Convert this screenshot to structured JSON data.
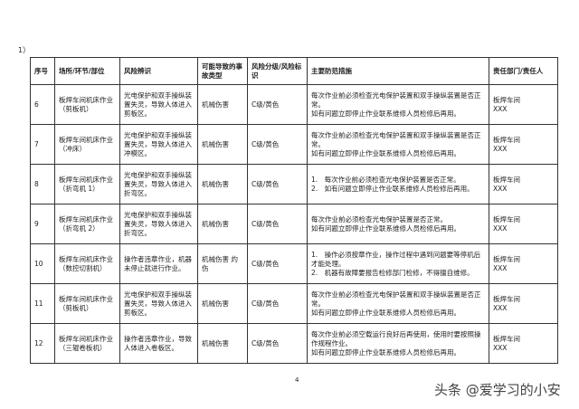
{
  "label": "1）",
  "headers": [
    "序号",
    "场所/环节/部位",
    "风险辨识",
    "可能导致的事故类型",
    "风险分级/风险标识",
    "主要防范措施",
    "责任部门/责任人"
  ],
  "rows": [
    {
      "no": "6",
      "place": "板焊车间机床作业（剪板机）",
      "risk": "光电保护和双手操纵装置失灵，导致人体进入剪板区。",
      "accident": "机械伤害",
      "level": "C级/黄色",
      "measures": [
        "每次作业前必须检查光电保护装置和双手操纵装置是否正常。",
        "如有问题立即停止作业联系维修人员检修后再用。"
      ],
      "dept": "板焊车间",
      "person": "XXX"
    },
    {
      "no": "7",
      "place": "板焊车间机床作业（冲床）",
      "risk": "光电保护和双手操纵装置失灵，导致人体进入冲模区。",
      "accident": "机械伤害",
      "level": "C级/黄色",
      "measures": [
        "每次作业前必须检查光电保护装置和双手操纵装置是否正常。",
        "如有问题立即停止作业联系维修人员检修后再用。"
      ],
      "dept": "板焊车间",
      "person": "XXX"
    },
    {
      "no": "8",
      "place": "板焊车间机床作业（折弯机 1）",
      "risk": "光电保护和双手操纵装置失灵，导致人体进入折弯区。",
      "accident": "机械伤害",
      "level": "C级/黄色",
      "measures": [
        "1.　每次作业前必须检查光电保护装置是否正常。",
        "2.　如有问题立即停止作业联系维修人员检修后再用。"
      ],
      "dept": "板焊车间",
      "person": "XXX"
    },
    {
      "no": "9",
      "place": "板焊车间机床作业（折弯机 2）",
      "risk": "光电保护和双手操纵装置失灵，导致人体进入折弯区。",
      "accident": "机械伤害",
      "level": "C级/黄色",
      "measures": [
        "每次作业前必须检查光电保护装置是否正常。",
        "如有问题立即停止作业联系维修人员检修后再用。"
      ],
      "dept": "板焊车间",
      "person": "XXX"
    },
    {
      "no": "10",
      "place": "板焊车间机床作业（数控切割机）",
      "risk": "操作者违章作业，机器未停止就进行作业。",
      "accident": "机械伤害 灼伤",
      "level": "C级/黄色",
      "measures": [
        "1.　操作必须按章作业，操作过程中遇到问题要等停机后才能处理。",
        "2.　机器有故障要报告检修部门检修，不得擅自维修。"
      ],
      "dept": "板焊车间",
      "person": "XXX"
    },
    {
      "no": "11",
      "place": "板焊车间机床作业（剪板机）",
      "risk": "光电保护和双手操纵装置失灵，导致人体进入剪板区。",
      "accident": "机械伤害",
      "level": "C级/黄色",
      "measures": [
        "每次作业前必须检查光电保护装置和双手操纵装置是否正常。",
        "如有问题立即停止作业联系维修人员检修后再用。"
      ],
      "dept": "板焊车间",
      "person": "XXX"
    },
    {
      "no": "12",
      "place": "板焊车间机床作业（三辊卷板机）",
      "risk": "操作者违章作业，导致人体进入卷板区。",
      "accident": "机械伤害",
      "level": "C级/黄色",
      "measures": [
        "每次作业前必须空载运行良好后再使用，使用时要按照操作规程作业。",
        "如有问题立即停止作业联系维修人员检修后再用。"
      ],
      "dept": "板焊车间",
      "person": "XXX"
    }
  ],
  "page_number": "4",
  "watermark": "头条 @爱学习的小安"
}
